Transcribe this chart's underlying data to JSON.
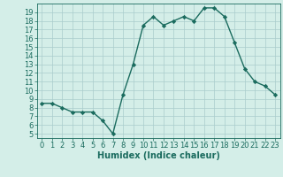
{
  "x": [
    0,
    1,
    2,
    3,
    4,
    5,
    6,
    7,
    8,
    9,
    10,
    11,
    12,
    13,
    14,
    15,
    16,
    17,
    18,
    19,
    20,
    21,
    22,
    23
  ],
  "y": [
    8.5,
    8.5,
    8.0,
    7.5,
    7.5,
    7.5,
    6.5,
    5.0,
    9.5,
    13.0,
    17.5,
    18.5,
    17.5,
    18.0,
    18.5,
    18.0,
    19.5,
    19.5,
    18.5,
    15.5,
    12.5,
    11.0,
    10.5,
    9.5
  ],
  "line_color": "#1a6b5e",
  "marker": "D",
  "marker_size": 2.2,
  "linewidth": 1.0,
  "xlabel": "Humidex (Indice chaleur)",
  "xlim": [
    -0.5,
    23.5
  ],
  "ylim": [
    4.5,
    20.0
  ],
  "yticks": [
    5,
    6,
    7,
    8,
    9,
    10,
    11,
    12,
    13,
    14,
    15,
    16,
    17,
    18,
    19
  ],
  "xticks": [
    0,
    1,
    2,
    3,
    4,
    5,
    6,
    7,
    8,
    9,
    10,
    11,
    12,
    13,
    14,
    15,
    16,
    17,
    18,
    19,
    20,
    21,
    22,
    23
  ],
  "background_color": "#d4eee8",
  "grid_color": "#aacccc",
  "font_color": "#1a6b5e",
  "tick_fontsize": 6,
  "xlabel_fontsize": 7
}
